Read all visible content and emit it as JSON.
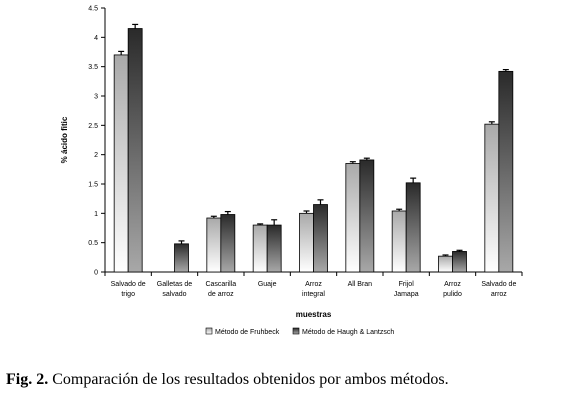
{
  "chart_data": {
    "type": "bar",
    "ylabel": "% ácido fitic",
    "xlabel": "muestras",
    "ylim": [
      0,
      4.5
    ],
    "yticks": [
      "0",
      "0.5",
      "1",
      "1.5",
      "2",
      "2.5",
      "3",
      "3.5",
      "4",
      "4.5"
    ],
    "categories": [
      [
        "Salvado de",
        "trigo"
      ],
      [
        "Galletas de",
        "salvado"
      ],
      [
        "Cascarilla",
        "de arroz"
      ],
      [
        "Guaje"
      ],
      [
        "Arroz",
        "integral"
      ],
      [
        "All Bran"
      ],
      [
        "Frijol",
        "Jamapa"
      ],
      [
        "Arroz",
        "pulido"
      ],
      [
        "Salvado de",
        "arroz"
      ]
    ],
    "series": [
      {
        "name": "Método de Fruhbeck",
        "values": [
          3.7,
          null,
          0.92,
          0.8,
          1.0,
          1.85,
          1.04,
          0.27,
          2.52
        ],
        "errors": [
          0.06,
          null,
          0.03,
          0.02,
          0.04,
          0.03,
          0.03,
          0.02,
          0.04
        ]
      },
      {
        "name": "Método de Haugh & Lantzsch",
        "values": [
          4.15,
          0.48,
          0.98,
          0.8,
          1.15,
          1.91,
          1.52,
          0.35,
          3.42
        ],
        "errors": [
          0.07,
          0.05,
          0.05,
          0.09,
          0.08,
          0.03,
          0.08,
          0.02,
          0.03
        ]
      }
    ],
    "legend_position": "bottom",
    "grid": false
  },
  "caption": {
    "label": "Fig. 2.",
    "text": " Comparación de los resultados obtenidos por ambos métodos."
  }
}
